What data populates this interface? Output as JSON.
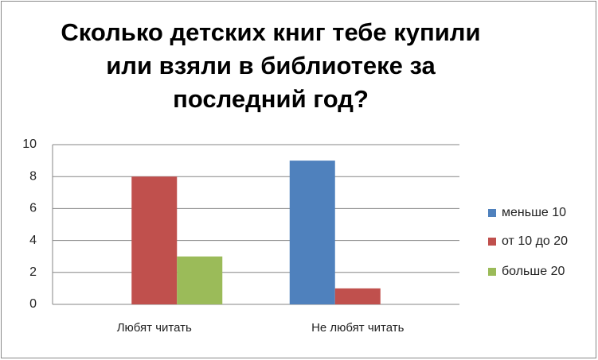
{
  "chart_data": {
    "type": "bar",
    "title": "Сколько детских книг тебе купили или взяли в библиотеке за последний год?",
    "categories": [
      "Любят читать",
      "Не любят читать"
    ],
    "series": [
      {
        "name": "меньше 10",
        "color": "#4f81bd",
        "values": [
          0,
          9
        ]
      },
      {
        "name": "от 10 до 20",
        "color": "#c0504d",
        "values": [
          8,
          1
        ]
      },
      {
        "name": "больше 20",
        "color": "#9bbb59",
        "values": [
          3,
          0
        ]
      }
    ],
    "ylim": [
      0,
      10
    ],
    "yticks": [
      0,
      2,
      4,
      6,
      8,
      10
    ],
    "grid": true,
    "legend": "right"
  }
}
